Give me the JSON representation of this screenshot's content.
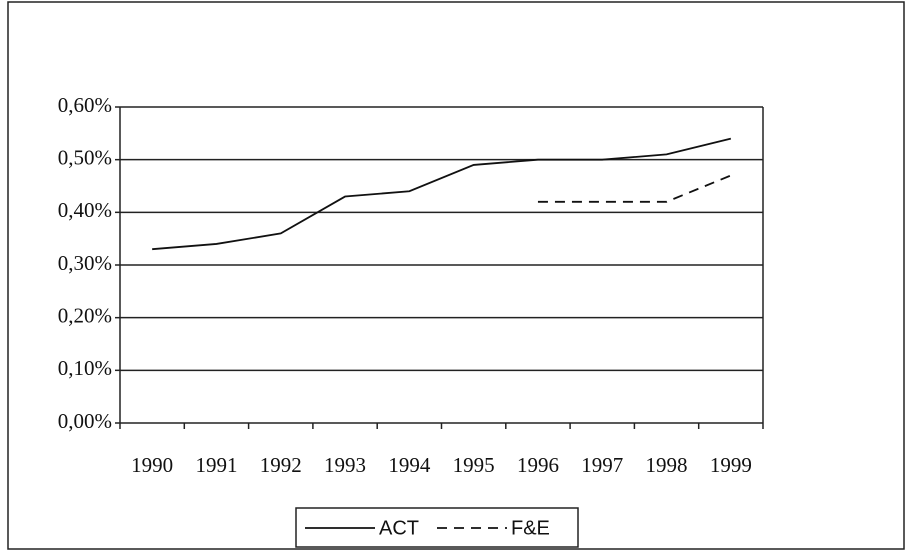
{
  "chart_data": {
    "type": "line",
    "categories": [
      "1990",
      "1991",
      "1992",
      "1993",
      "1994",
      "1995",
      "1996",
      "1997",
      "1998",
      "1999"
    ],
    "series": [
      {
        "name": "ACT",
        "color": "#111111",
        "dash": false,
        "values": [
          0.33,
          0.34,
          0.36,
          0.43,
          0.44,
          0.49,
          0.5,
          0.5,
          0.51,
          0.54
        ]
      },
      {
        "name": "F&E",
        "color": "#111111",
        "dash": true,
        "values": [
          null,
          null,
          null,
          null,
          null,
          null,
          0.42,
          0.42,
          0.42,
          0.47
        ]
      }
    ],
    "ylim": [
      0,
      0.6
    ],
    "yticks": [
      {
        "value": 0,
        "label": "0,00%"
      },
      {
        "value": 0.1,
        "label": "0,10%"
      },
      {
        "value": 0.2,
        "label": "0,20%"
      },
      {
        "value": 0.3,
        "label": "0,30%"
      },
      {
        "value": 0.4,
        "label": "0,40%"
      },
      {
        "value": 0.5,
        "label": "0,50%"
      },
      {
        "value": 0.6,
        "label": "0,60%"
      }
    ],
    "grid": true,
    "legend": "bottom"
  }
}
